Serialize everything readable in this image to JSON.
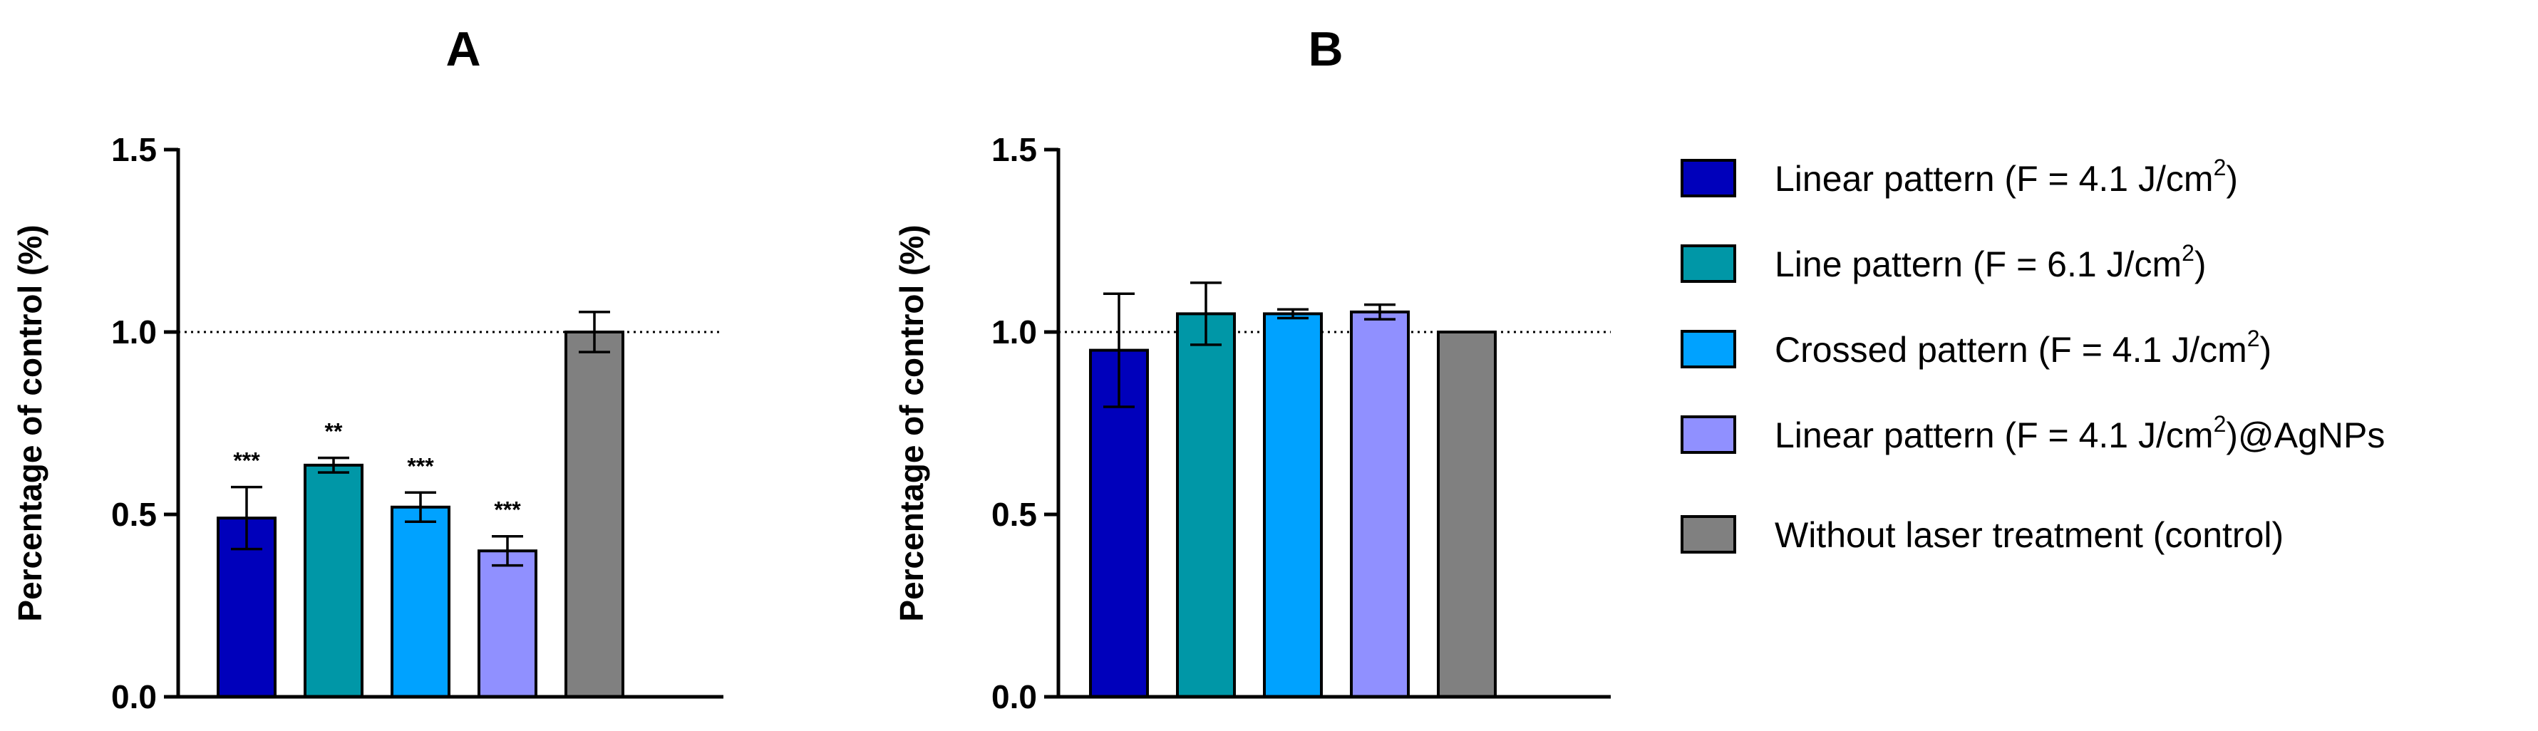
{
  "chart_data": [
    {
      "type": "bar",
      "title": "A",
      "xlabel": "",
      "ylabel": "Percentage of control (%)",
      "ylim": [
        0,
        1.5
      ],
      "yticks": [
        "0.0",
        "0.5",
        "1.0",
        "1.5"
      ],
      "ytick_values": [
        0,
        0.5,
        1.0,
        1.5
      ],
      "reference_line": 1.0,
      "categories": [
        "Linear pattern (F = 4.1 J/cm2)",
        "Line pattern (F = 6.1 J/cm2)",
        "Crossed pattern (F = 4.1 J/cm2)",
        "Linear pattern (F = 4.1 J/cm2)@AgNPs",
        "Without laser treatment (control)"
      ],
      "values": [
        0.49,
        0.635,
        0.52,
        0.4,
        1.0
      ],
      "errors": [
        0.085,
        0.02,
        0.04,
        0.04,
        0.055
      ],
      "significance": [
        "***",
        "**",
        "***",
        "***",
        ""
      ]
    },
    {
      "type": "bar",
      "title": "B",
      "xlabel": "",
      "ylabel": "Percentage of control (%)",
      "ylim": [
        0,
        1.5
      ],
      "yticks": [
        "0.0",
        "0.5",
        "1.0",
        "1.5"
      ],
      "ytick_values": [
        0,
        0.5,
        1.0,
        1.5
      ],
      "reference_line": 1.0,
      "categories": [
        "Linear pattern (F = 4.1 J/cm2)",
        "Line pattern (F = 6.1 J/cm2)",
        "Crossed pattern (F = 4.1 J/cm2)",
        "Linear pattern (F = 4.1 J/cm2)@AgNPs",
        "Without laser treatment (control)"
      ],
      "values": [
        0.95,
        1.05,
        1.05,
        1.055,
        1.0
      ],
      "errors": [
        0.155,
        0.085,
        0.012,
        0.02,
        0.0
      ],
      "significance": [
        "",
        "",
        "",
        "",
        ""
      ]
    }
  ],
  "legend": {
    "position": "right",
    "items": [
      {
        "name": "Linear pattern (F = 4.1 J/cm2)",
        "pre": "Linear pattern (F = 4.1 J/cm",
        "sup": "2",
        "post": ")",
        "color": "#0000BB"
      },
      {
        "name": "Line pattern (F = 6.1 J/cm2)",
        "pre": "Line pattern (F = 6.1 J/cm",
        "sup": "2",
        "post": ")",
        "color": "#0097A7"
      },
      {
        "name": "Crossed pattern (F = 4.1 J/cm2)",
        "pre": "Crossed pattern (F = 4.1 J/cm",
        "sup": "2",
        "post": ")",
        "color": "#00A2FF"
      },
      {
        "name": "Linear pattern (F = 4.1 J/cm2)@AgNPs",
        "pre": "Linear pattern (F = 4.1 J/cm",
        "sup": "2",
        "post": ")@AgNPs",
        "color": "#9090FF"
      },
      {
        "name": "Without laser treatment (control)",
        "pre": "Without laser treatment (control)",
        "sup": "",
        "post": "",
        "color": "#808080"
      }
    ]
  }
}
